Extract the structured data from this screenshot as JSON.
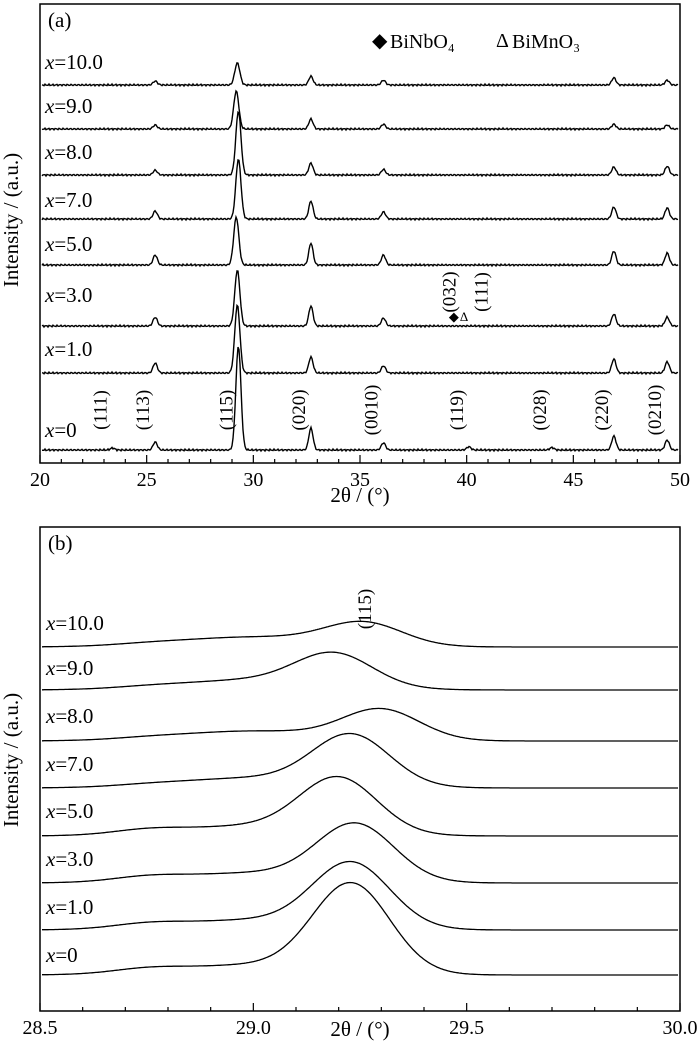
{
  "panel_a": {
    "tag": "(a)",
    "xlabel": "2θ / (°)",
    "ylabel": "Intensity / (a.u.)",
    "xticks": [
      "20",
      "25",
      "30",
      "35",
      "40",
      "45",
      "50"
    ],
    "legend": [
      {
        "symbol": "◆",
        "text": "BiNbO₄"
      },
      {
        "symbol": "Δ",
        "text": "BiMnO₃"
      }
    ],
    "hkl_bottom": [
      {
        "text": "(111)",
        "x": 23.4
      },
      {
        "text": "(113)",
        "x": 25.4
      },
      {
        "text": "(115)",
        "x": 29.3
      },
      {
        "text": "(020)",
        "x": 32.7
      },
      {
        "text": "(0010)",
        "x": 36.1
      },
      {
        "text": "(119)",
        "x": 40.1
      },
      {
        "text": "(028)",
        "x": 44.0
      },
      {
        "text": "(220)",
        "x": 46.9
      },
      {
        "text": "(0210)",
        "x": 49.4
      }
    ],
    "hkl_impurity": [
      {
        "text": "(032)",
        "x": 39.2
      },
      {
        "text": "(111)",
        "x": 40.7
      }
    ]
  },
  "panel_b": {
    "tag": "(b)",
    "xlabel": "2θ / (°)",
    "ylabel": "Intensity / (a.u.)",
    "xticks": [
      "28.5",
      "29.0",
      "29.5",
      "30.0"
    ],
    "peak_label": "(115)"
  },
  "series_labels": [
    "x=10.0",
    "x=9.0",
    "x=8.0",
    "x=7.0",
    "x=5.0",
    "x=3.0",
    "x=1.0",
    "x=0"
  ],
  "chart_data": [
    {
      "type": "line",
      "title": "",
      "xlabel": "2θ / (°)",
      "ylabel": "Intensity / (a.u.)",
      "xlim": [
        20,
        50
      ],
      "series": [
        {
          "name": "x=10.0",
          "peaks": [
            [
              25.4,
              0.1
            ],
            [
              29.25,
              0.55
            ],
            [
              32.7,
              0.22
            ],
            [
              36.1,
              0.12
            ],
            [
              46.9,
              0.18
            ],
            [
              49.4,
              0.12
            ]
          ]
        },
        {
          "name": "x=9.0",
          "peaks": [
            [
              25.4,
              0.1
            ],
            [
              29.2,
              0.95
            ],
            [
              32.7,
              0.25
            ],
            [
              36.1,
              0.12
            ],
            [
              46.9,
              0.12
            ],
            [
              49.4,
              0.1
            ]
          ]
        },
        {
          "name": "x=8.0",
          "peaks": [
            [
              25.4,
              0.12
            ],
            [
              29.3,
              1.6
            ],
            [
              32.7,
              0.3
            ],
            [
              36.1,
              0.14
            ],
            [
              46.9,
              0.2
            ],
            [
              49.4,
              0.22
            ]
          ]
        },
        {
          "name": "x=7.0",
          "peaks": [
            [
              25.4,
              0.2
            ],
            [
              29.3,
              1.5
            ],
            [
              32.7,
              0.45
            ],
            [
              36.1,
              0.18
            ],
            [
              46.9,
              0.3
            ],
            [
              49.4,
              0.28
            ]
          ]
        },
        {
          "name": "x=5.0",
          "peaks": [
            [
              25.4,
              0.25
            ],
            [
              29.2,
              1.2
            ],
            [
              32.7,
              0.55
            ],
            [
              36.1,
              0.25
            ],
            [
              46.9,
              0.35
            ],
            [
              49.4,
              0.3
            ]
          ]
        },
        {
          "name": "x=3.0",
          "peaks": [
            [
              25.4,
              0.22
            ],
            [
              29.25,
              1.4
            ],
            [
              32.7,
              0.5
            ],
            [
              36.1,
              0.2
            ],
            [
              46.9,
              0.3
            ],
            [
              49.4,
              0.22
            ]
          ]
        },
        {
          "name": "x=1.0",
          "peaks": [
            [
              25.4,
              0.25
            ],
            [
              29.25,
              1.7
            ],
            [
              32.7,
              0.4
            ],
            [
              36.1,
              0.18
            ],
            [
              46.9,
              0.35
            ],
            [
              49.4,
              0.28
            ]
          ]
        },
        {
          "name": "x=0",
          "peaks": [
            [
              23.4,
              0.05
            ],
            [
              25.4,
              0.2
            ],
            [
              29.3,
              2.6
            ],
            [
              32.7,
              0.55
            ],
            [
              36.1,
              0.18
            ],
            [
              40.1,
              0.08
            ],
            [
              44.0,
              0.06
            ],
            [
              46.9,
              0.35
            ],
            [
              49.4,
              0.25
            ]
          ]
        }
      ]
    },
    {
      "type": "line",
      "title": "",
      "xlabel": "2θ / (°)",
      "ylabel": "Intensity / (a.u.)",
      "xlim": [
        28.5,
        30.0
      ],
      "series": [
        {
          "name": "x=10.0",
          "peak_center": 29.26,
          "peak_height": 0.55
        },
        {
          "name": "x=9.0",
          "peak_center": 29.19,
          "peak_height": 0.8
        },
        {
          "name": "x=8.0",
          "peak_center": 29.3,
          "peak_height": 0.75
        },
        {
          "name": "x=7.0",
          "peak_center": 29.23,
          "peak_height": 1.25
        },
        {
          "name": "x=5.0",
          "peak_center": 29.2,
          "peak_height": 1.35
        },
        {
          "name": "x=3.0",
          "peak_center": 29.24,
          "peak_height": 1.4
        },
        {
          "name": "x=1.0",
          "peak_center": 29.23,
          "peak_height": 1.6
        },
        {
          "name": "x=0",
          "peak_center": 29.23,
          "peak_height": 2.2
        }
      ]
    }
  ]
}
